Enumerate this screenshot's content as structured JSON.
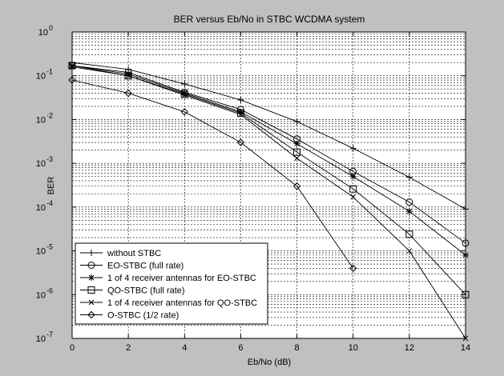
{
  "chart_data": {
    "type": "line",
    "title": "BER versus Eb/No in STBC WCDMA system",
    "xlabel": "Eb/No (dB)",
    "ylabel": "BER",
    "xlim": [
      0,
      14
    ],
    "ylim": [
      1e-07,
      1
    ],
    "yscale": "log",
    "grid": true,
    "legend_position": "bottom-left",
    "x": [
      0,
      2,
      4,
      6,
      8,
      10,
      12,
      14
    ],
    "x_ticks": [
      0,
      2,
      4,
      6,
      8,
      10,
      12,
      14
    ],
    "y_tick_exponents": [
      0,
      -1,
      -2,
      -3,
      -4,
      -5,
      -6,
      -7
    ],
    "y_tick_base": "10",
    "series": [
      {
        "name": "without STBC",
        "marker": "plus",
        "values": [
          0.2,
          0.14,
          0.065,
          0.028,
          0.009,
          0.0022,
          0.00048,
          9e-05
        ]
      },
      {
        "name": "EO-STBC (full rate)",
        "marker": "circle",
        "values": [
          0.17,
          0.12,
          0.042,
          0.017,
          0.0036,
          0.00065,
          0.00013,
          1.5e-05
        ]
      },
      {
        "name": "1 of 4 receiver antennas for EO-STBC",
        "marker": "star",
        "values": [
          0.17,
          0.11,
          0.04,
          0.015,
          0.0028,
          0.0005,
          8e-05,
          8e-06
        ]
      },
      {
        "name": "QO-STBC (full rate)",
        "marker": "square",
        "values": [
          0.17,
          0.1,
          0.038,
          0.014,
          0.0018,
          0.00026,
          2.4e-05,
          1e-06
        ]
      },
      {
        "name": "1 of 4 receiver antennas for QO-STBC",
        "marker": "x",
        "values": [
          0.16,
          0.1,
          0.036,
          0.013,
          0.0013,
          0.00017,
          1e-05,
          1e-07
        ]
      },
      {
        "name": "O-STBC (1/2 rate)",
        "marker": "diamond",
        "values": [
          0.08,
          0.04,
          0.015,
          0.003,
          0.0003,
          4e-06,
          null,
          null
        ]
      }
    ]
  }
}
